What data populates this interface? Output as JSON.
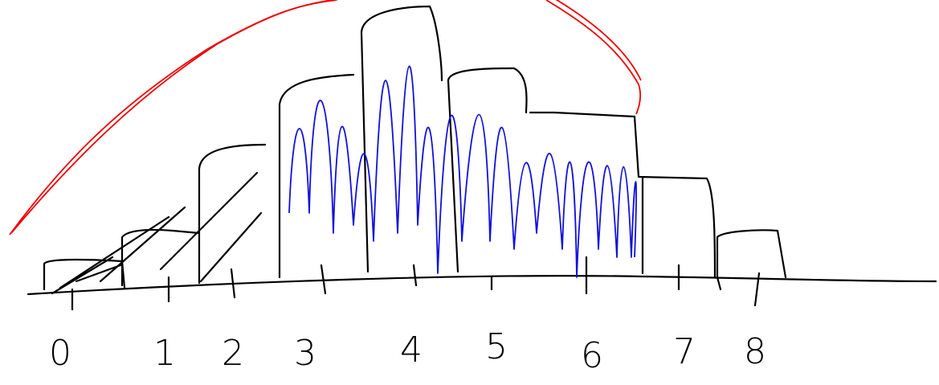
{
  "axis_labels": [
    "0",
    "1",
    "2",
    "3",
    "4",
    "5",
    "6",
    "7",
    "8"
  ]
}
